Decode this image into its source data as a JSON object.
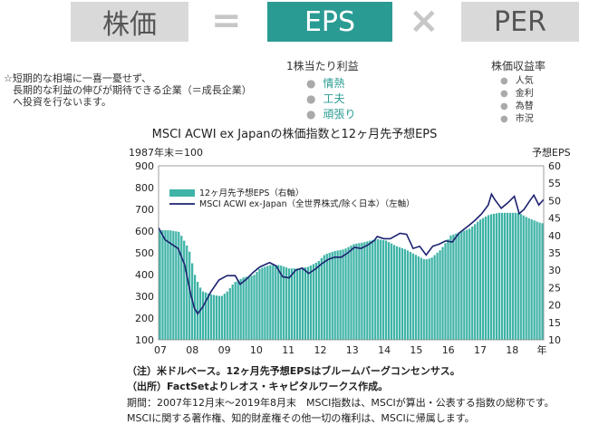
{
  "header": {
    "left_label": "株価",
    "eq_symbol": "=",
    "mid_label": "EPS",
    "times_symbol": "×",
    "right_label": "PER",
    "mid_sub": "1株当たり利益",
    "right_sub": "株価収益率",
    "mid_bullets": [
      "情熱",
      "工夫",
      "頑張り"
    ],
    "right_bullets": [
      "人気",
      "金利",
      "為替",
      "市況"
    ],
    "note_lines": [
      "☆短期的な相場に一喜一憂せず、",
      "長期的な利益の伸びが期待できる企業（＝成長企業）",
      "へ投資を行ないます。"
    ]
  },
  "colors": {
    "teal": "#2a9b93",
    "bar": "#3fb3a7",
    "line": "#1c2270",
    "gray_box": "#d9d9d9"
  },
  "chart_data": {
    "type": "bar",
    "title": "MSCI ACWI ex Japanの株価指数と12ヶ月先予想EPS",
    "left_unit": "1987年末＝100",
    "right_unit": "予想EPS",
    "x_end_label": "年",
    "left_axis": {
      "ylim": [
        100,
        900
      ],
      "ticks": [
        "900",
        "800",
        "700",
        "600",
        "500",
        "400",
        "300",
        "200",
        "100"
      ]
    },
    "right_axis": {
      "ylim": [
        10,
        60
      ],
      "ticks": [
        "60",
        "55",
        "50",
        "45",
        "40",
        "35",
        "30",
        "25",
        "20",
        "15",
        "10"
      ]
    },
    "x_ticks": [
      "07",
      "08",
      "09",
      "10",
      "11",
      "12",
      "13",
      "14",
      "15",
      "16",
      "17",
      "18"
    ],
    "x_range": [
      2007.9,
      2019.7
    ],
    "legend": [
      {
        "name": "12ヶ月先予想EPS（右軸）",
        "kind": "bar"
      },
      {
        "name": "MSCI ACWI ex-Japan（全世界株式/除く日本）（左軸）",
        "kind": "line"
      }
    ],
    "series": [
      {
        "name": "12ヶ月先予想EPS（右軸）",
        "axis": "right",
        "points": [
          [
            2007.9,
            41.5
          ],
          [
            2008.2,
            41.5
          ],
          [
            2008.5,
            41.0
          ],
          [
            2008.8,
            36.0
          ],
          [
            2009.0,
            28.0
          ],
          [
            2009.2,
            24.0
          ],
          [
            2009.5,
            23.0
          ],
          [
            2009.8,
            22.5
          ],
          [
            2010.0,
            24.0
          ],
          [
            2010.2,
            26.5
          ],
          [
            2010.5,
            28.0
          ],
          [
            2010.8,
            28.5
          ],
          [
            2011.0,
            30.5
          ],
          [
            2011.3,
            31.5
          ],
          [
            2011.6,
            31.5
          ],
          [
            2011.9,
            30.5
          ],
          [
            2012.2,
            30.5
          ],
          [
            2012.5,
            31.0
          ],
          [
            2012.8,
            32.5
          ],
          [
            2013.0,
            34.5
          ],
          [
            2013.3,
            35.5
          ],
          [
            2013.6,
            36.0
          ],
          [
            2013.9,
            37.5
          ],
          [
            2014.2,
            38.0
          ],
          [
            2014.6,
            39.0
          ],
          [
            2014.9,
            38.5
          ],
          [
            2015.2,
            37.0
          ],
          [
            2015.5,
            36.0
          ],
          [
            2015.8,
            34.5
          ],
          [
            2016.1,
            33.0
          ],
          [
            2016.3,
            33.5
          ],
          [
            2016.6,
            36.0
          ],
          [
            2016.9,
            40.0
          ],
          [
            2017.2,
            41.0
          ],
          [
            2017.5,
            42.0
          ],
          [
            2017.8,
            44.5
          ],
          [
            2018.1,
            46.0
          ],
          [
            2018.4,
            46.5
          ],
          [
            2018.7,
            46.5
          ],
          [
            2019.0,
            46.5
          ],
          [
            2019.3,
            45.0
          ],
          [
            2019.7,
            43.5
          ]
        ]
      },
      {
        "name": "MSCI ACWI ex-Japan（全世界株式/除く日本）（左軸）",
        "axis": "left",
        "points": [
          [
            2007.9,
            615
          ],
          [
            2008.1,
            560
          ],
          [
            2008.3,
            540
          ],
          [
            2008.5,
            520
          ],
          [
            2008.7,
            445
          ],
          [
            2008.9,
            300
          ],
          [
            2009.0,
            245
          ],
          [
            2009.1,
            220
          ],
          [
            2009.25,
            250
          ],
          [
            2009.5,
            320
          ],
          [
            2009.75,
            375
          ],
          [
            2010.0,
            395
          ],
          [
            2010.25,
            395
          ],
          [
            2010.4,
            355
          ],
          [
            2010.6,
            380
          ],
          [
            2010.8,
            410
          ],
          [
            2011.0,
            435
          ],
          [
            2011.3,
            455
          ],
          [
            2011.5,
            440
          ],
          [
            2011.7,
            390
          ],
          [
            2011.9,
            385
          ],
          [
            2012.1,
            420
          ],
          [
            2012.3,
            430
          ],
          [
            2012.5,
            405
          ],
          [
            2012.7,
            425
          ],
          [
            2012.9,
            450
          ],
          [
            2013.1,
            470
          ],
          [
            2013.3,
            480
          ],
          [
            2013.5,
            480
          ],
          [
            2013.7,
            500
          ],
          [
            2013.9,
            525
          ],
          [
            2014.1,
            520
          ],
          [
            2014.3,
            535
          ],
          [
            2014.5,
            555
          ],
          [
            2014.6,
            575
          ],
          [
            2014.8,
            565
          ],
          [
            2015.0,
            565
          ],
          [
            2015.3,
            590
          ],
          [
            2015.5,
            585
          ],
          [
            2015.7,
            520
          ],
          [
            2015.9,
            530
          ],
          [
            2016.1,
            490
          ],
          [
            2016.3,
            530
          ],
          [
            2016.5,
            540
          ],
          [
            2016.7,
            555
          ],
          [
            2016.9,
            550
          ],
          [
            2017.1,
            590
          ],
          [
            2017.4,
            625
          ],
          [
            2017.6,
            650
          ],
          [
            2017.8,
            680
          ],
          [
            2018.0,
            720
          ],
          [
            2018.1,
            770
          ],
          [
            2018.2,
            745
          ],
          [
            2018.4,
            705
          ],
          [
            2018.6,
            730
          ],
          [
            2018.8,
            760
          ],
          [
            2018.95,
            680
          ],
          [
            2019.1,
            700
          ],
          [
            2019.3,
            745
          ],
          [
            2019.4,
            765
          ],
          [
            2019.55,
            720
          ],
          [
            2019.7,
            745
          ]
        ]
      }
    ]
  },
  "footnotes": {
    "note": "（注）米ドルベース。12ヶ月先予想EPSはブルームバーグコンセンサス。",
    "source": "（出所）FactSetよりレオス・キャピタルワークス作成。",
    "period": "期間：2007年12月末～2019年8月末　MSCI指数は、MSCIが算出・公表する指数の総称です。",
    "rights": "MSCIに関する著作権、知的財産権その他一切の権利は、MSCIに帰属します。"
  }
}
